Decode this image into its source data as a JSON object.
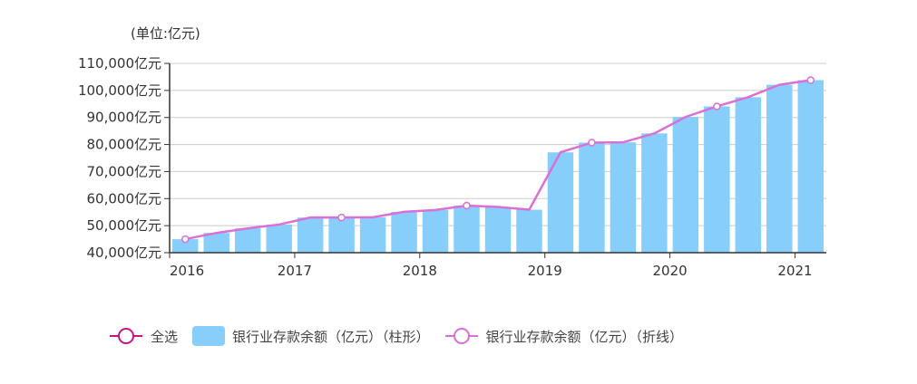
{
  "chart_data": {
    "type": "bar+line",
    "title": "",
    "unit_label": "(单位:亿元)",
    "xlabel": "",
    "ylabel": "",
    "ylim": [
      40000,
      110000
    ],
    "y_ticks": [
      "40,000亿元",
      "50,000亿元",
      "60,000亿元",
      "70,000亿元",
      "80,000亿元",
      "90,000亿元",
      "100,000亿元",
      "110,000亿元"
    ],
    "y_tick_values": [
      40000,
      50000,
      60000,
      70000,
      80000,
      90000,
      100000,
      110000
    ],
    "x_tick_labels": [
      "2016",
      "2017",
      "2018",
      "2019",
      "2020",
      "2021"
    ],
    "x_tick_indices": [
      0,
      4,
      8,
      12,
      16,
      20
    ],
    "grid": true,
    "legend_position": "bottom",
    "series": [
      {
        "name": "银行业存款余额（亿元）（柱形）",
        "type": "bar",
        "color": "#87cefa",
        "values": [
          45000,
          47300,
          49000,
          50400,
          53000,
          53000,
          53100,
          55100,
          55800,
          57400,
          56900,
          55900,
          77100,
          80700,
          80800,
          84100,
          90200,
          94100,
          97500,
          102100,
          103800
        ]
      },
      {
        "name": "银行业存款余额（亿元）（折线）",
        "type": "line",
        "color": "#da70d6",
        "marker_indices": [
          0,
          5,
          9,
          13,
          17,
          20
        ],
        "values": [
          45000,
          47300,
          49000,
          50400,
          53000,
          53000,
          53100,
          55100,
          55800,
          57400,
          56900,
          55900,
          77100,
          80700,
          80800,
          84100,
          90200,
          94100,
          97500,
          102100,
          103800
        ]
      }
    ]
  },
  "legend": {
    "select_all": "全选",
    "bar_label": "银行业存款余额（亿元）（柱形）",
    "line_label": "银行业存款余额（亿元）（折线）",
    "select_all_color": "#c71585"
  }
}
